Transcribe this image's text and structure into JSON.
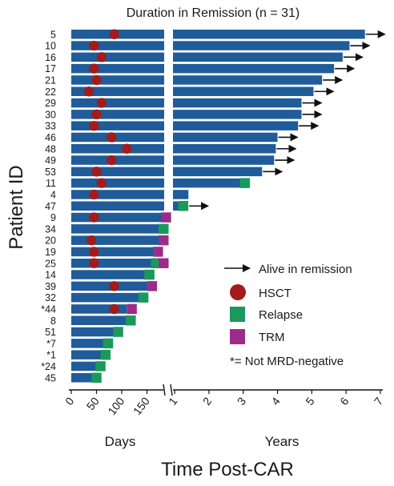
{
  "chart_data": {
    "type": "bar",
    "orientation": "horizontal",
    "title": "Duration in Remission (n = 31)",
    "ylabel": "Patient ID",
    "xlabel": "Time Post-CAR",
    "x_segments": [
      {
        "label": "Days",
        "unit": "days",
        "range": [
          0,
          180
        ],
        "ticks": [
          0,
          50,
          100,
          150
        ]
      },
      {
        "label": "Years",
        "unit": "years",
        "range": [
          0.95,
          7
        ],
        "ticks": [
          1,
          2,
          3,
          4,
          5,
          6,
          7
        ]
      }
    ],
    "colors": {
      "bar": "#1f5c99",
      "hsct": "#a31b1b",
      "relapse": "#1a9a5a",
      "trm": "#9b2d8a",
      "arrow": "#111111"
    },
    "patients": [
      {
        "id": "5",
        "years": 6.55,
        "hsct": 85,
        "alive": true
      },
      {
        "id": "10",
        "years": 6.1,
        "hsct": 45,
        "alive": true
      },
      {
        "id": "16",
        "years": 5.9,
        "hsct": 60,
        "alive": true
      },
      {
        "id": "17",
        "years": 5.65,
        "hsct": 45,
        "alive": true
      },
      {
        "id": "21",
        "years": 5.3,
        "hsct": 50,
        "alive": true
      },
      {
        "id": "22",
        "years": 5.05,
        "hsct": 35,
        "alive": true
      },
      {
        "id": "29",
        "years": 4.7,
        "hsct": 60,
        "alive": true
      },
      {
        "id": "30",
        "years": 4.7,
        "hsct": 50,
        "alive": true
      },
      {
        "id": "33",
        "years": 4.6,
        "hsct": 45,
        "alive": true
      },
      {
        "id": "46",
        "years": 4.0,
        "hsct": 80,
        "alive": true
      },
      {
        "id": "48",
        "years": 3.95,
        "hsct": 110,
        "alive": true
      },
      {
        "id": "49",
        "years": 3.9,
        "hsct": 80,
        "alive": true
      },
      {
        "id": "53",
        "years": 3.55,
        "hsct": 50,
        "alive": true
      },
      {
        "id": "11",
        "years": 3.0,
        "hsct": 60,
        "relapse_years": 3.05
      },
      {
        "id": "4",
        "years": 1.4,
        "hsct": 45
      },
      {
        "id": "47",
        "years": 1.25,
        "relapse_years": 1.25,
        "alive": true
      },
      {
        "id": "9",
        "days": 180,
        "hsct": 45,
        "trm_days": 188
      },
      {
        "id": "34",
        "days": 180,
        "relapse_days": 183
      },
      {
        "id": "20",
        "days": 175,
        "hsct": 40,
        "trm_days": 183
      },
      {
        "id": "19",
        "days": 165,
        "hsct": 45,
        "trm_days": 172
      },
      {
        "id": "25",
        "days": 175,
        "hsct": 45,
        "relapse_days": 168,
        "trm_days": 183
      },
      {
        "id": "14",
        "days": 150,
        "relapse_days": 155
      },
      {
        "id": "39",
        "days": 150,
        "hsct": 85,
        "trm_days": 160
      },
      {
        "id": "32",
        "days": 140,
        "relapse_days": 143
      },
      {
        "id": "*44",
        "days": 110,
        "hsct": 85,
        "trm_days": 120
      },
      {
        "id": "8",
        "days": 115,
        "relapse_days": 118
      },
      {
        "id": "51",
        "days": 90,
        "relapse_days": 93
      },
      {
        "id": "*7",
        "days": 70,
        "relapse_days": 73
      },
      {
        "id": "*1",
        "days": 65,
        "relapse_days": 68
      },
      {
        "id": "*24",
        "days": 55,
        "relapse_days": 58
      },
      {
        "id": "45",
        "days": 50,
        "relapse_days": 50
      }
    ],
    "legend": {
      "placement": "bottom-right",
      "items": [
        {
          "symbol": "arrow",
          "label": "Alive in remission"
        },
        {
          "symbol": "circle",
          "label": "HSCT"
        },
        {
          "symbol": "square",
          "label": "Relapse",
          "color": "#1a9a5a"
        },
        {
          "symbol": "square",
          "label": "TRM",
          "color": "#9b2d8a"
        }
      ],
      "note": "*= Not MRD-negative"
    },
    "grid": false
  }
}
